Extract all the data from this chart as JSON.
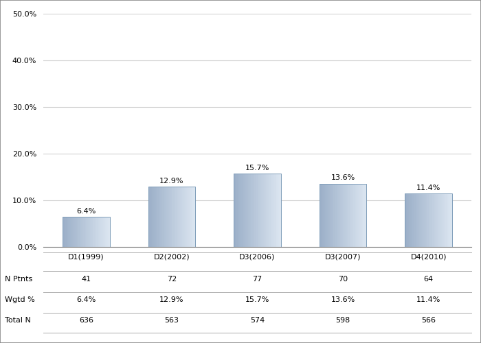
{
  "categories": [
    "D1(1999)",
    "D2(2002)",
    "D3(2006)",
    "D3(2007)",
    "D4(2010)"
  ],
  "values": [
    6.4,
    12.9,
    15.7,
    13.6,
    11.4
  ],
  "bar_labels": [
    "6.4%",
    "12.9%",
    "15.7%",
    "13.6%",
    "11.4%"
  ],
  "n_ptnts": [
    "41",
    "72",
    "77",
    "70",
    "64"
  ],
  "wgtd_pct": [
    "6.4%",
    "12.9%",
    "15.7%",
    "13.6%",
    "11.4%"
  ],
  "total_n": [
    "636",
    "563",
    "574",
    "598",
    "566"
  ],
  "ylim": [
    0,
    50
  ],
  "yticks": [
    0,
    10,
    20,
    30,
    40,
    50
  ],
  "ytick_labels": [
    "0.0%",
    "10.0%",
    "20.0%",
    "30.0%",
    "40.0%",
    "50.0%"
  ],
  "bar_color_left": "#9bafc8",
  "bar_color_right": "#dce6f1",
  "bar_edge_color": "#7f9db9",
  "background_color": "#ffffff",
  "grid_color": "#d0d0d0",
  "label_fontsize": 8,
  "tick_fontsize": 8,
  "table_fontsize": 8,
  "row_labels": [
    "N Ptnts",
    "Wgtd %",
    "Total N"
  ],
  "outer_border_color": "#aaaaaa"
}
